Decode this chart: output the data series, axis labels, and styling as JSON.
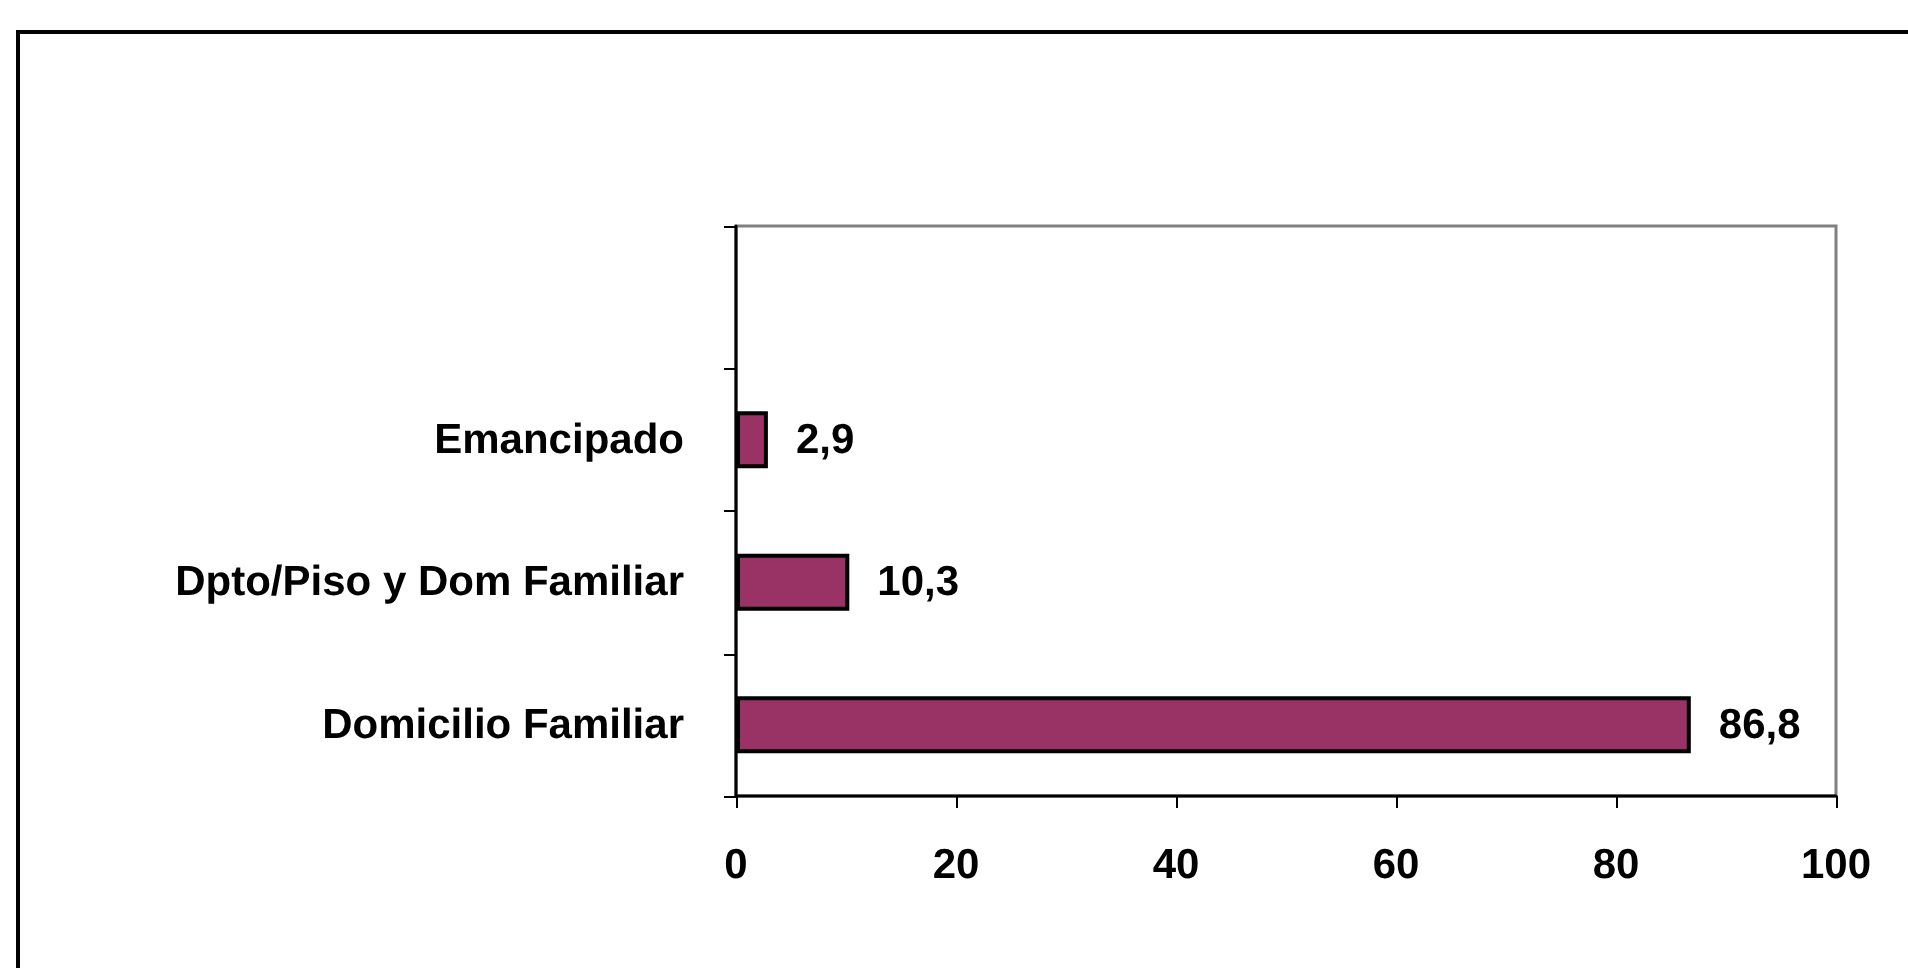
{
  "chart_data": {
    "type": "bar",
    "orientation": "horizontal",
    "categories": [
      null,
      "Emancipado",
      "Dpto/Piso y Dom Familiar",
      "Domicilio Familiar"
    ],
    "values": [
      null,
      2.9,
      10.3,
      86.8
    ],
    "color": "#993366",
    "value_labels": [
      null,
      "2,9",
      "10,3",
      "86,8"
    ],
    "xlim": [
      0,
      100
    ],
    "xticks": [
      0,
      20,
      40,
      60,
      80,
      100
    ]
  }
}
